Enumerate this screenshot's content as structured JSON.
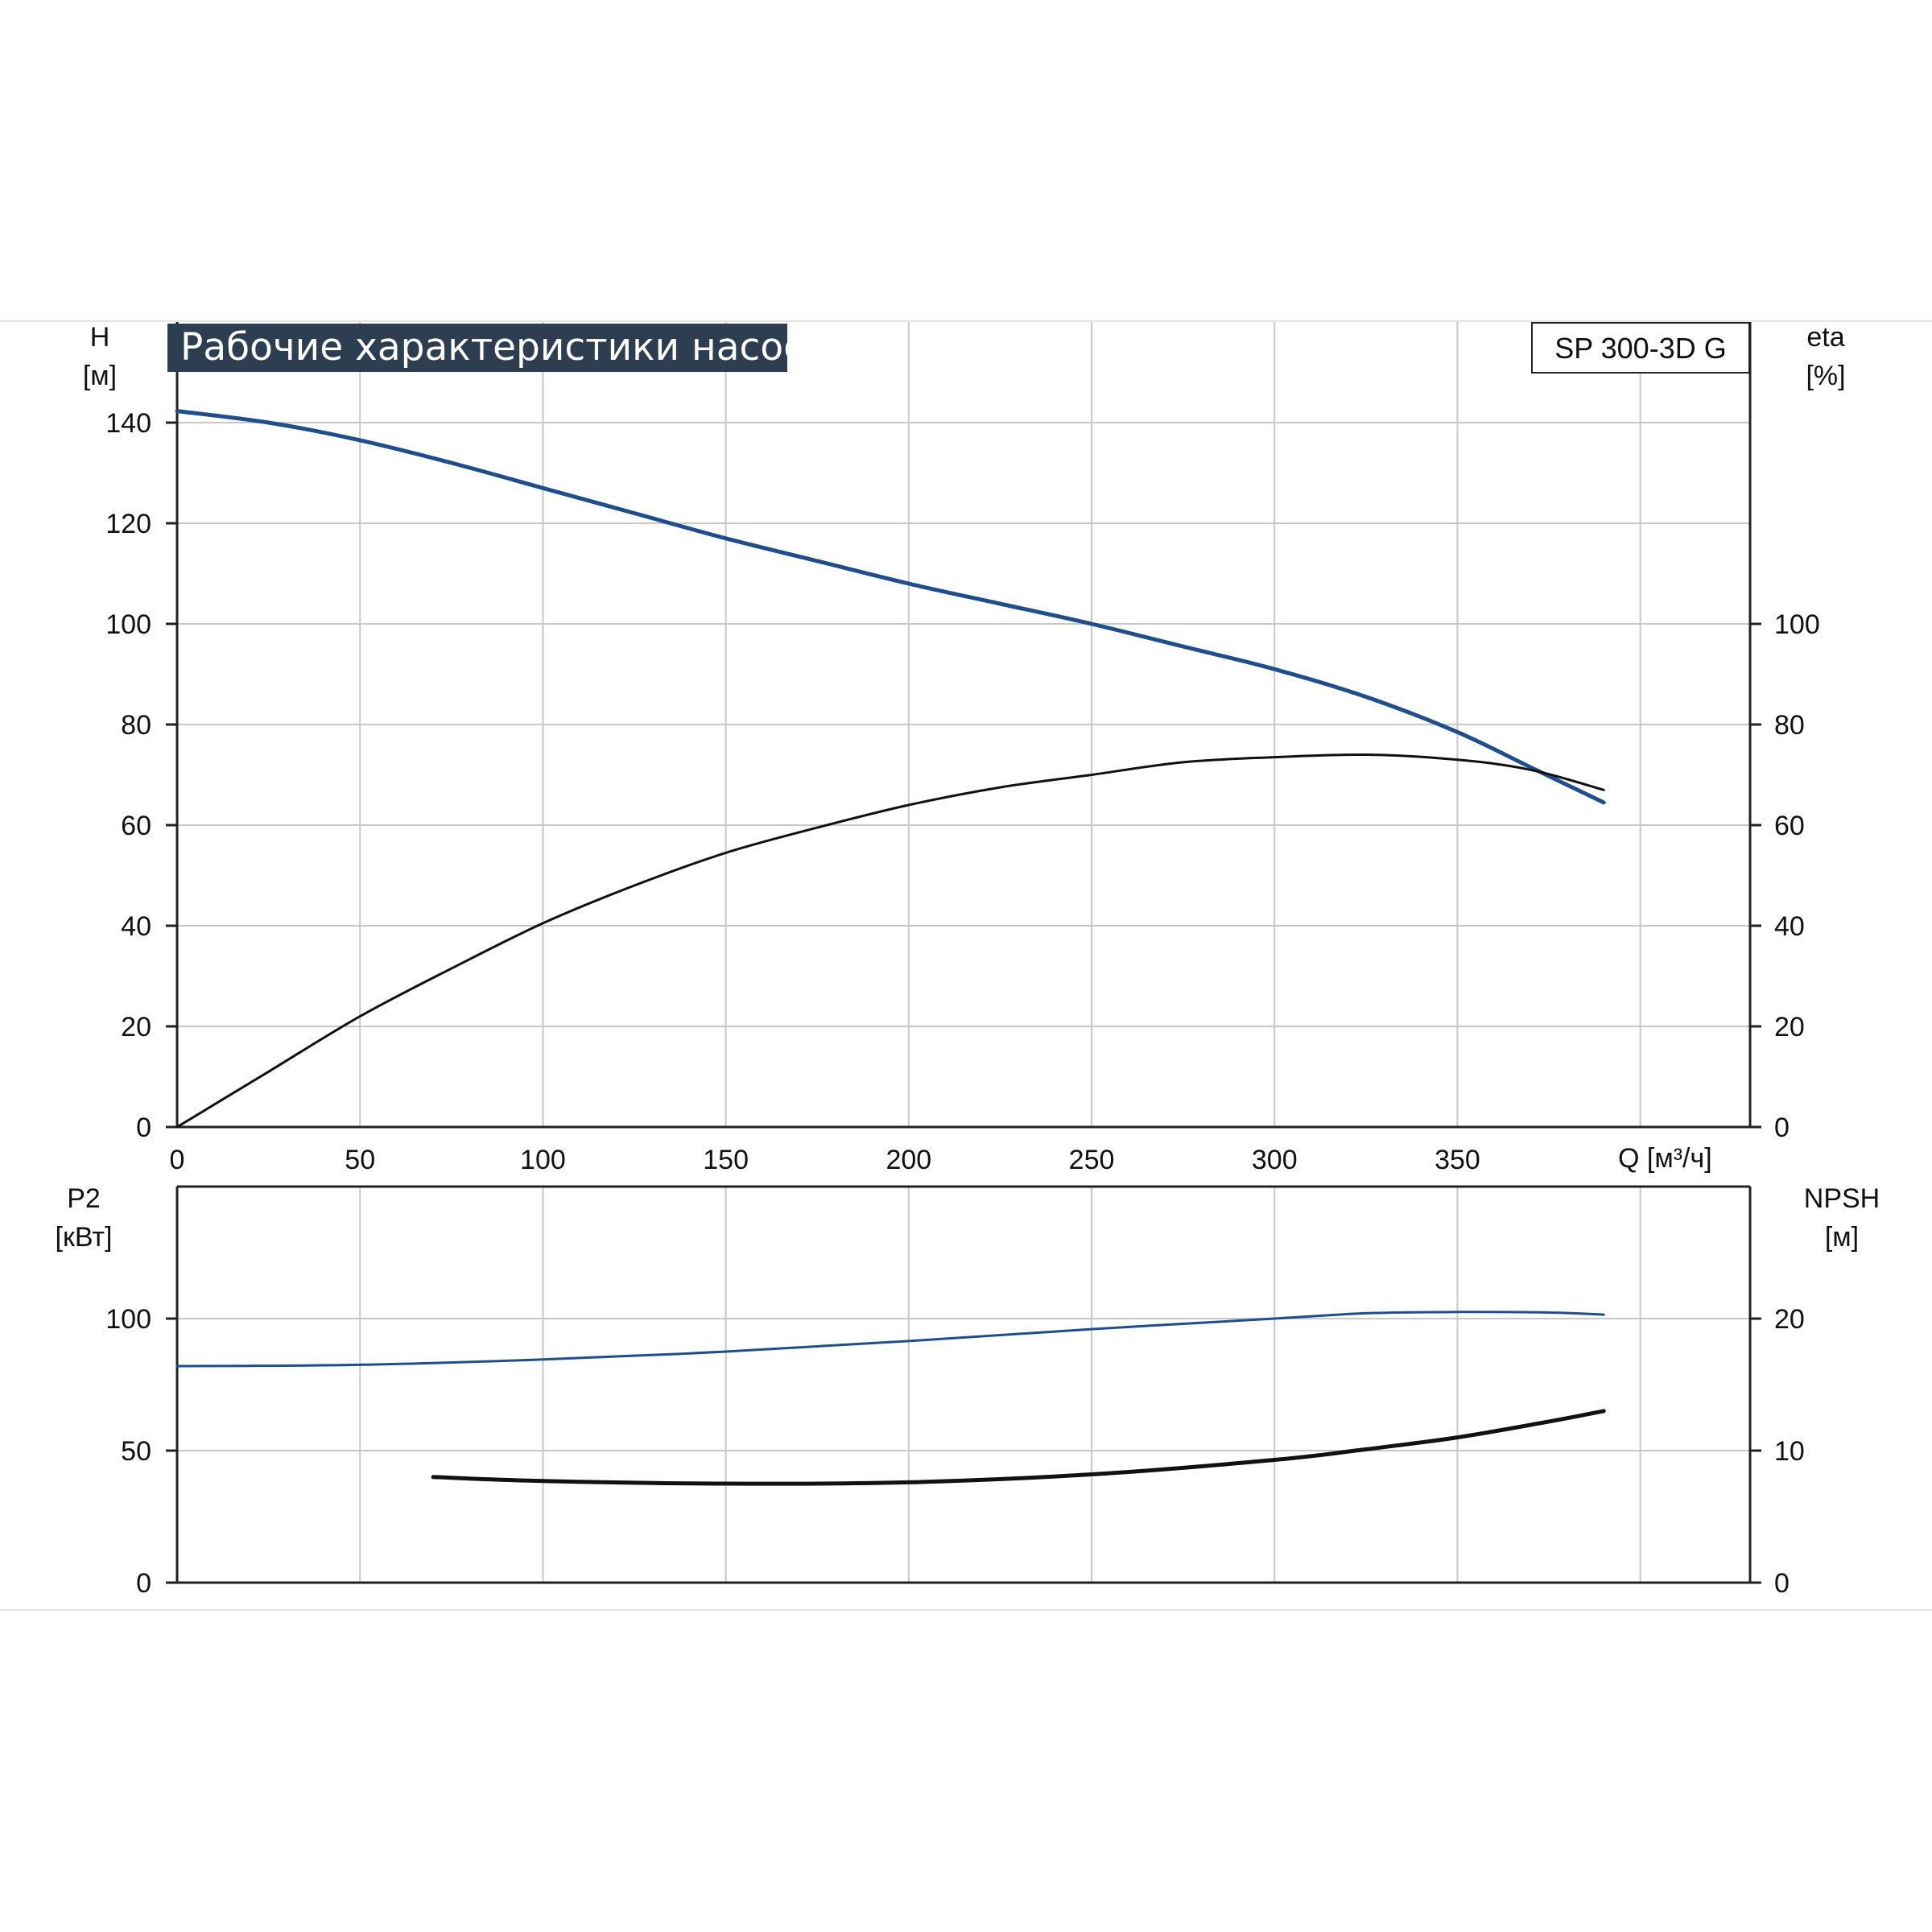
{
  "title": "Рабочие характеристики насоса",
  "model": "SP 300-3D G",
  "top_chart": {
    "left_axis": {
      "label": "H",
      "unit": "[м]"
    },
    "right_axis": {
      "label": "eta",
      "unit": "[%]"
    },
    "x_axis_label": "Q [м³/ч]"
  },
  "bottom_chart": {
    "left_axis": {
      "label": "P2",
      "unit": "[кВт]"
    },
    "right_axis": {
      "label": "NPSH",
      "unit": "[м]"
    }
  },
  "colors": {
    "head_curve": "#1f4e8c",
    "eta_curve": "#111111",
    "p2_curve": "#1f4e8c",
    "npsh_curve": "#111111",
    "grid": "#c8c8c8",
    "title_bg": "#2c3e50"
  },
  "chart_data": [
    {
      "type": "line",
      "xlim": [
        0,
        430
      ],
      "x_ticks": [
        0,
        50,
        100,
        150,
        200,
        250,
        300,
        350
      ],
      "ylim_left": [
        0,
        160
      ],
      "y_ticks_left": [
        0,
        20,
        40,
        60,
        80,
        100,
        120,
        140
      ],
      "ylim_right": [
        0,
        160
      ],
      "y_ticks_right": [
        0,
        20,
        40,
        60,
        80,
        100
      ],
      "grid": true,
      "series": [
        {
          "key": "H",
          "axis": "left",
          "x": [
            0,
            25,
            50,
            75,
            100,
            125,
            150,
            175,
            200,
            225,
            250,
            275,
            300,
            325,
            350,
            370,
            390
          ],
          "y": [
            142.3,
            140.0,
            136.5,
            132.0,
            127.0,
            122.0,
            117.0,
            112.5,
            108.0,
            104.0,
            100.0,
            95.5,
            91.0,
            85.5,
            78.5,
            71.5,
            64.5
          ]
        },
        {
          "key": "eta",
          "axis": "right",
          "x": [
            0,
            25,
            50,
            75,
            100,
            125,
            150,
            175,
            200,
            225,
            250,
            275,
            300,
            325,
            350,
            370,
            390
          ],
          "y": [
            0,
            11.0,
            22.0,
            31.5,
            40.5,
            48.0,
            54.5,
            59.5,
            64.0,
            67.5,
            70.0,
            72.5,
            73.5,
            74.0,
            73.0,
            71.0,
            67.0
          ]
        }
      ]
    },
    {
      "type": "line",
      "xlim": [
        0,
        430
      ],
      "ylim_left": [
        0,
        150
      ],
      "y_ticks_left": [
        0,
        50,
        100
      ],
      "ylim_right": [
        0,
        30
      ],
      "y_ticks_right": [
        0,
        10,
        20
      ],
      "grid": true,
      "series": [
        {
          "key": "P2",
          "axis": "left",
          "x": [
            0,
            50,
            100,
            150,
            200,
            250,
            300,
            325,
            350,
            375,
            390
          ],
          "y": [
            82.0,
            82.5,
            84.5,
            87.5,
            91.5,
            96.0,
            100.0,
            102.0,
            102.5,
            102.3,
            101.5
          ]
        },
        {
          "key": "NPSH",
          "axis": "right",
          "x": [
            70,
            100,
            150,
            200,
            250,
            300,
            325,
            350,
            375,
            390
          ],
          "y": [
            8.0,
            7.7,
            7.5,
            7.6,
            8.2,
            9.3,
            10.1,
            11.0,
            12.2,
            13.0
          ]
        }
      ]
    }
  ]
}
